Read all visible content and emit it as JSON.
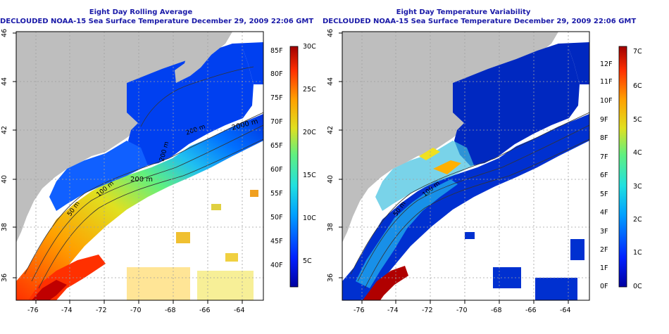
{
  "panels": [
    {
      "id": "left",
      "title_line1": "Eight Day Rolling Average",
      "title_line2": "DECLOUDED NOAA-15 Sea Surface Temperature December 29, 2009 22:06 GMT",
      "x_ticks": [
        "-76",
        "-74",
        "-72",
        "-70",
        "-68",
        "-66",
        "-64"
      ],
      "y_ticks": [
        "36",
        "38",
        "40",
        "42",
        "44",
        "46"
      ],
      "contour_labels": [
        "50 m",
        "100 m",
        "200 m",
        "2000 m",
        "200 m",
        "200 m"
      ],
      "colorbar": {
        "fahrenheit_ticks": [
          "85F",
          "80F",
          "75F",
          "70F",
          "65F",
          "60F",
          "55F",
          "50F",
          "45F",
          "40F"
        ],
        "celsius_ticks": [
          "30C",
          "25C",
          "20C",
          "15C",
          "10C",
          "5C"
        ]
      }
    },
    {
      "id": "right",
      "title_line1": "Eight Day Temperature Variability",
      "title_line2": "DECLOUDED NOAA-15 Sea Surface Temperature December 29, 2009 22:06 GMT",
      "x_ticks": [
        "-76",
        "-74",
        "-72",
        "-70",
        "-68",
        "-66",
        "-64"
      ],
      "y_ticks": [
        "36",
        "38",
        "40",
        "42",
        "44",
        "46"
      ],
      "contour_labels": [
        "50 m",
        "100 m"
      ],
      "colorbar": {
        "fahrenheit_ticks": [
          "12F",
          "11F",
          "10F",
          "9F",
          "8F",
          "7F",
          "6F",
          "5F",
          "4F",
          "3F",
          "2F",
          "1F",
          "0F"
        ],
        "celsius_ticks": [
          "7C",
          "6C",
          "5C",
          "4C",
          "3C",
          "2C",
          "1C",
          "0C"
        ]
      }
    }
  ],
  "colors": {
    "title": "#1a1aa8",
    "land": "#bebebe",
    "no_data": "#ffffff",
    "colormap": [
      "#0000a0",
      "#0020ff",
      "#00a0ff",
      "#20e0e0",
      "#60f080",
      "#e0e020",
      "#ffa000",
      "#ff3000",
      "#a00000"
    ]
  }
}
